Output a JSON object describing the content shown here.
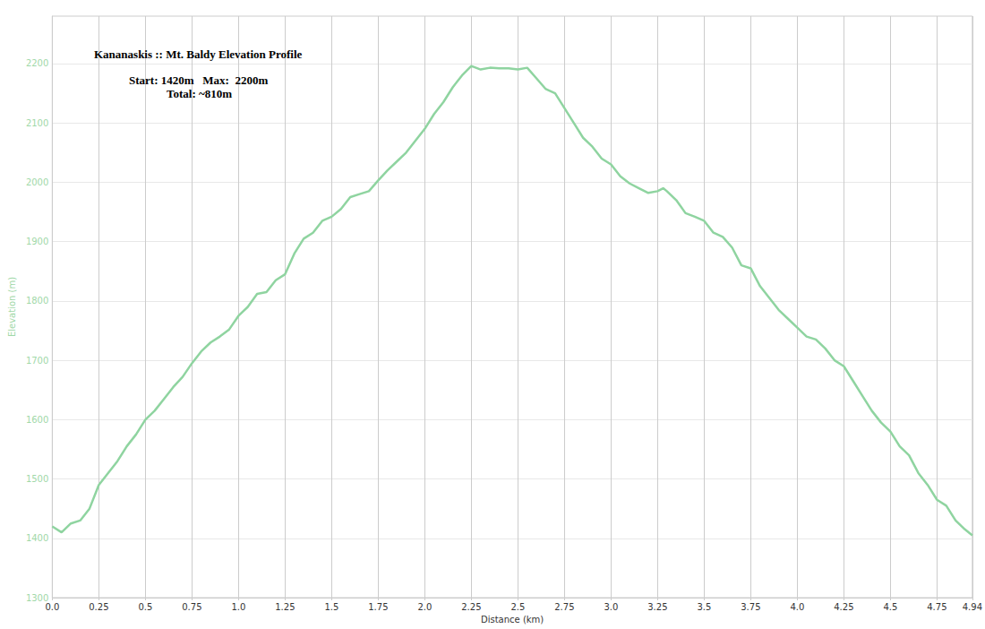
{
  "chart_data": {
    "type": "line",
    "title": "Kananaskis :: Mt. Baldy Elevation Profile",
    "subtitle": [
      "Start: 1420m   Max:  2200m",
      "Total: ~810m"
    ],
    "x_label": "Distance (km)",
    "y_label": "Elevation (m)",
    "x": [
      0,
      0.05,
      0.1,
      0.15,
      0.2,
      0.25,
      0.3,
      0.35,
      0.4,
      0.45,
      0.5,
      0.55,
      0.6,
      0.65,
      0.7,
      0.75,
      0.8,
      0.85,
      0.9,
      0.95,
      1.0,
      1.05,
      1.1,
      1.15,
      1.2,
      1.25,
      1.3,
      1.35,
      1.4,
      1.45,
      1.5,
      1.55,
      1.6,
      1.65,
      1.7,
      1.75,
      1.8,
      1.85,
      1.9,
      1.95,
      2.0,
      2.05,
      2.1,
      2.15,
      2.2,
      2.25,
      2.3,
      2.35,
      2.4,
      2.45,
      2.5,
      2.55,
      2.6,
      2.65,
      2.7,
      2.75,
      2.8,
      2.85,
      2.9,
      2.95,
      3.0,
      3.05,
      3.1,
      3.15,
      3.2,
      3.25,
      3.28,
      3.3,
      3.35,
      3.4,
      3.45,
      3.5,
      3.55,
      3.6,
      3.65,
      3.7,
      3.75,
      3.8,
      3.85,
      3.9,
      3.95,
      4.0,
      4.05,
      4.1,
      4.15,
      4.2,
      4.25,
      4.3,
      4.35,
      4.4,
      4.45,
      4.5,
      4.55,
      4.6,
      4.65,
      4.7,
      4.75,
      4.8,
      4.85,
      4.9,
      4.94
    ],
    "values": [
      1420,
      1410,
      1425,
      1430,
      1450,
      1490,
      1510,
      1530,
      1555,
      1575,
      1600,
      1615,
      1635,
      1655,
      1672,
      1695,
      1715,
      1730,
      1740,
      1752,
      1775,
      1790,
      1812,
      1815,
      1835,
      1845,
      1880,
      1905,
      1915,
      1935,
      1942,
      1955,
      1975,
      1980,
      1985,
      2003,
      2020,
      2035,
      2050,
      2070,
      2090,
      2115,
      2135,
      2160,
      2180,
      2196,
      2190,
      2193,
      2192,
      2192,
      2190,
      2193,
      2175,
      2157,
      2150,
      2125,
      2100,
      2075,
      2060,
      2040,
      2030,
      2010,
      1998,
      1990,
      1982,
      1985,
      1990,
      1985,
      1970,
      1948,
      1942,
      1935,
      1915,
      1908,
      1890,
      1860,
      1855,
      1825,
      1805,
      1785,
      1770,
      1755,
      1740,
      1735,
      1720,
      1700,
      1690,
      1665,
      1640,
      1615,
      1595,
      1580,
      1555,
      1540,
      1510,
      1490,
      1465,
      1455,
      1430,
      1415,
      1405
    ],
    "color": "#8fd4a0",
    "xlim": [
      0,
      4.94
    ],
    "xticks": [
      {
        "value": 0,
        "label": "0.0"
      },
      0.25,
      0.5,
      0.75,
      {
        "value": 1,
        "label": "1.0"
      },
      1.25,
      1.5,
      1.75,
      {
        "value": 2,
        "label": "2.0"
      },
      2.25,
      2.5,
      2.75,
      {
        "value": 3,
        "label": "3.0"
      },
      3.25,
      3.5,
      3.75,
      {
        "value": 4,
        "label": "4.0"
      },
      4.25,
      4.5,
      4.75,
      4.94
    ],
    "ylim": [
      1300,
      2280
    ],
    "yticks": [
      1300,
      1400,
      1500,
      1600,
      1700,
      1800,
      1900,
      2000,
      2100,
      2200
    ],
    "grid": true
  }
}
